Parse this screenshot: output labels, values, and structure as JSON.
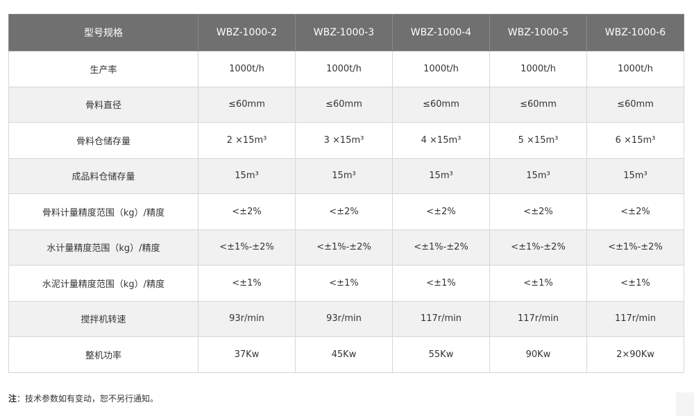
{
  "table": {
    "headers": [
      "型号规格",
      "WBZ-1000-2",
      "WBZ-1000-3",
      "WBZ-1000-4",
      "WBZ-1000-5",
      "WBZ-1000-6"
    ],
    "rows": [
      {
        "label": "生产率",
        "cells": [
          "1000t/h",
          "1000t/h",
          "1000t/h",
          "1000t/h",
          "1000t/h"
        ]
      },
      {
        "label": "骨料直径",
        "cells": [
          "≤60mm",
          "≤60mm",
          "≤60mm",
          "≤60mm",
          "≤60mm"
        ]
      },
      {
        "label": "骨料仓储存量",
        "cells": [
          "2 ×15m³",
          "3 ×15m³",
          "4 ×15m³",
          "5 ×15m³",
          "6 ×15m³"
        ]
      },
      {
        "label": "成品料仓储存量",
        "cells": [
          "15m³",
          "15m³",
          "15m³",
          "15m³",
          "15m³"
        ]
      },
      {
        "label": "骨料计量精度范围（kg）/精度",
        "cells": [
          "<±2%",
          "<±2%",
          "<±2%",
          "<±2%",
          "<±2%"
        ]
      },
      {
        "label": "水计量精度范围（kg）/精度",
        "cells": [
          "<±1%-±2%",
          "<±1%-±2%",
          "<±1%-±2%",
          "<±1%-±2%",
          "<±1%-±2%"
        ]
      },
      {
        "label": "水泥计量精度范围（kg）/精度",
        "cells": [
          "<±1%",
          "<±1%",
          "<±1%",
          "<±1%",
          "<±1%"
        ]
      },
      {
        "label": "搅拌机转速",
        "cells": [
          "93r/min",
          "93r/min",
          "117r/min",
          "117r/min",
          "117r/min"
        ]
      },
      {
        "label": "整机功率",
        "cells": [
          "37Kw",
          "45Kw",
          "55Kw",
          "90Kw",
          "2×90Kw"
        ]
      }
    ]
  },
  "note": {
    "label": "注",
    "text": "：技术参数如有变动，恕不另行通知。"
  }
}
